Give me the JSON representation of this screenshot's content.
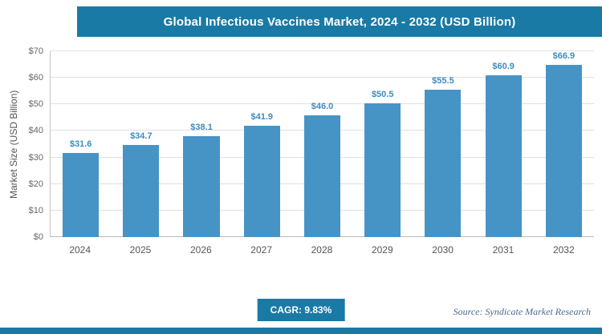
{
  "chart_data": {
    "type": "bar",
    "title": "Global Infectious Vaccines Market, 2024 - 2032 (USD Billion)",
    "categories": [
      "2024",
      "2025",
      "2026",
      "2027",
      "2028",
      "2029",
      "2030",
      "2031",
      "2032"
    ],
    "values": [
      31.6,
      34.7,
      38.1,
      41.9,
      46.0,
      50.5,
      55.5,
      60.9,
      66.9
    ],
    "value_labels": [
      "$31.6",
      "$34.7",
      "$38.1",
      "$41.9",
      "$46.0",
      "$50.5",
      "$55.5",
      "$60.9",
      "$66.9"
    ],
    "xlabel": "",
    "ylabel": "Market Size (USD Billion)",
    "ylim": [
      0,
      70
    ],
    "ytick_step": 10,
    "ytick_labels": [
      "$0",
      "$10",
      "$20",
      "$30",
      "$40",
      "$50",
      "$60",
      "$70"
    ],
    "grid": true,
    "legend": "none"
  },
  "footer": {
    "cagr_label": "CAGR: 9.83%",
    "source_label": "Source: Syndicate Market Research"
  },
  "colors": {
    "accent": "#1a7aa6",
    "bar": "#4694c6",
    "bar_label": "#3f8cbd"
  }
}
